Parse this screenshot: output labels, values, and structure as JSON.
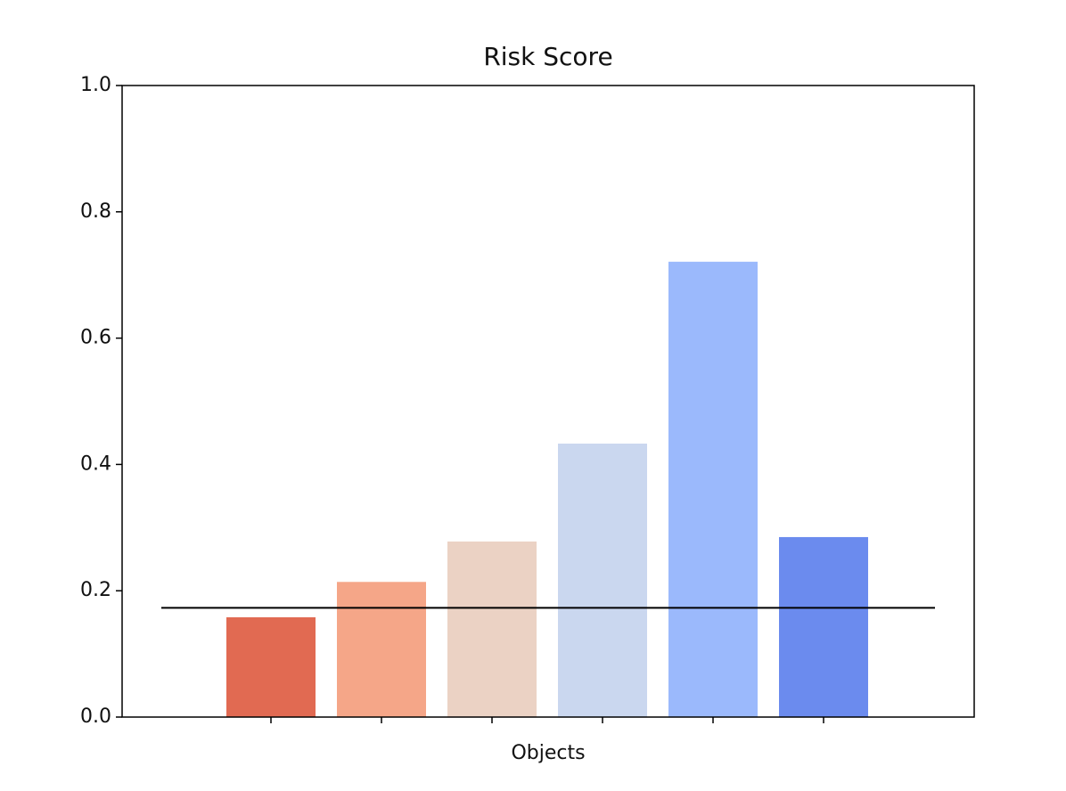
{
  "chart_data": {
    "type": "bar",
    "title": "Risk Score",
    "xlabel": "Objects",
    "categories": [
      null,
      null,
      null,
      null,
      null,
      null
    ],
    "values": [
      0.158,
      0.214,
      0.278,
      0.433,
      0.721,
      0.285
    ],
    "colors": [
      "#e16a52",
      "#f5a688",
      "#ebd2c4",
      "#cad7ef",
      "#9bb9fc",
      "#6b8bee"
    ],
    "hline": 0.173,
    "ylim": [
      0,
      1
    ],
    "yticks": [
      {
        "value": 0,
        "label": "0.0"
      },
      0.2,
      0.4,
      0.6,
      0.8,
      {
        "value": 1,
        "label": "1.0"
      }
    ]
  }
}
